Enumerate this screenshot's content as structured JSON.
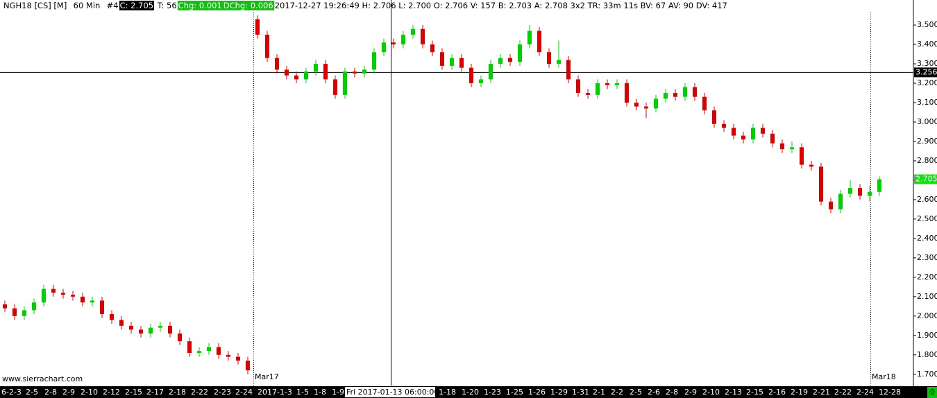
{
  "header": {
    "symbol": "NGH18 [CS] [M]",
    "interval": "60 Min",
    "index": "#4",
    "close": "C: 2.705",
    "trades": "T: 56",
    "chg": "Chg: 0.001",
    "dchg": "DChg: 0.006",
    "details": "2017-12-27 19:26:49 H: 2.706 L: 2.700 O: 2.706 V: 157 B: 2.703 A: 2.708 3x2 TR: 33m 11s BV: 67 AV: 90 DV: 417"
  },
  "chart_data": {
    "type": "candlestick",
    "watermark": "www.sierrachart.com",
    "contract_labels": [
      "Mar17",
      "Mar18"
    ],
    "up_color": "#00d000",
    "down_color": "#d80000",
    "open": [
      2.06,
      2.04,
      2.0,
      2.03,
      2.07,
      2.14,
      2.12,
      2.11,
      2.1,
      2.07,
      2.08,
      2.01,
      1.98,
      1.95,
      1.93,
      1.91,
      1.94,
      1.95,
      1.91,
      1.87,
      1.81,
      1.82,
      1.84,
      1.8,
      1.79,
      1.77,
      3.53,
      3.45,
      3.33,
      3.27,
      3.24,
      3.22,
      3.26,
      3.3,
      3.22,
      3.14,
      3.26,
      3.25,
      3.27,
      3.36,
      3.41,
      3.4,
      3.45,
      3.48,
      3.4,
      3.36,
      3.29,
      3.33,
      3.28,
      3.2,
      3.22,
      3.3,
      3.33,
      3.31,
      3.4,
      3.47,
      3.36,
      3.3,
      3.32,
      3.22,
      3.15,
      3.14,
      3.2,
      3.19,
      3.2,
      3.1,
      3.08,
      3.07,
      3.12,
      3.15,
      3.13,
      3.18,
      3.13,
      3.06,
      2.99,
      2.97,
      2.93,
      2.91,
      2.97,
      2.94,
      2.89,
      2.86,
      2.87,
      2.78,
      2.77,
      2.59,
      2.55,
      2.63,
      2.66,
      2.62,
      2.64
    ],
    "high": [
      2.08,
      2.06,
      2.05,
      2.09,
      2.16,
      2.16,
      2.14,
      2.13,
      2.12,
      2.1,
      2.1,
      2.03,
      2.0,
      1.97,
      1.95,
      1.96,
      1.97,
      1.97,
      1.93,
      1.89,
      1.84,
      1.86,
      1.86,
      1.82,
      1.81,
      1.79,
      3.55,
      3.47,
      3.35,
      3.29,
      3.26,
      3.28,
      3.32,
      3.32,
      3.24,
      3.28,
      3.28,
      3.29,
      3.38,
      3.43,
      3.43,
      3.47,
      3.5,
      3.5,
      3.42,
      3.38,
      3.35,
      3.35,
      3.3,
      3.24,
      3.32,
      3.35,
      3.35,
      3.42,
      3.5,
      3.49,
      3.38,
      3.42,
      3.34,
      3.24,
      3.17,
      3.22,
      3.22,
      3.22,
      3.22,
      3.12,
      3.1,
      3.14,
      3.17,
      3.17,
      3.2,
      3.2,
      3.15,
      3.08,
      3.01,
      2.99,
      2.95,
      2.99,
      2.99,
      2.96,
      2.91,
      2.9,
      2.89,
      2.8,
      2.79,
      2.61,
      2.65,
      2.7,
      2.68,
      2.67,
      2.72
    ],
    "low": [
      2.02,
      1.98,
      1.98,
      2.01,
      2.05,
      2.1,
      2.09,
      2.08,
      2.05,
      2.05,
      1.99,
      1.96,
      1.93,
      1.91,
      1.89,
      1.89,
      1.92,
      1.89,
      1.85,
      1.79,
      1.79,
      1.8,
      1.78,
      1.77,
      1.75,
      1.7,
      3.43,
      3.31,
      3.25,
      3.22,
      3.2,
      3.2,
      3.24,
      3.2,
      3.12,
      3.12,
      3.23,
      3.23,
      3.25,
      3.34,
      3.38,
      3.38,
      3.43,
      3.38,
      3.34,
      3.27,
      3.27,
      3.26,
      3.18,
      3.18,
      3.2,
      3.28,
      3.29,
      3.29,
      3.38,
      3.34,
      3.28,
      3.28,
      3.2,
      3.13,
      3.12,
      3.12,
      3.17,
      3.17,
      3.08,
      3.06,
      3.02,
      3.05,
      3.1,
      3.11,
      3.11,
      3.11,
      3.04,
      2.97,
      2.95,
      2.91,
      2.89,
      2.89,
      2.92,
      2.87,
      2.84,
      2.84,
      2.76,
      2.75,
      2.57,
      2.53,
      2.53,
      2.61,
      2.6,
      2.59,
      2.62
    ],
    "close": [
      2.04,
      2.0,
      2.03,
      2.07,
      2.14,
      2.12,
      2.11,
      2.1,
      2.07,
      2.08,
      2.01,
      1.98,
      1.95,
      1.93,
      1.91,
      1.94,
      1.95,
      1.91,
      1.87,
      1.81,
      1.82,
      1.84,
      1.8,
      1.79,
      1.77,
      1.72,
      3.45,
      3.33,
      3.27,
      3.24,
      3.22,
      3.26,
      3.3,
      3.22,
      3.14,
      3.26,
      3.25,
      3.27,
      3.36,
      3.41,
      3.4,
      3.45,
      3.48,
      3.4,
      3.36,
      3.29,
      3.33,
      3.28,
      3.2,
      3.22,
      3.3,
      3.33,
      3.31,
      3.4,
      3.47,
      3.36,
      3.3,
      3.32,
      3.22,
      3.15,
      3.14,
      3.2,
      3.19,
      3.2,
      3.1,
      3.08,
      3.07,
      3.12,
      3.15,
      3.13,
      3.18,
      3.13,
      3.06,
      2.99,
      2.97,
      2.93,
      2.91,
      2.97,
      2.94,
      2.89,
      2.86,
      2.87,
      2.78,
      2.77,
      2.59,
      2.55,
      2.63,
      2.66,
      2.62,
      2.64,
      2.705
    ],
    "x_labels": [
      "6-2-3",
      "2-5",
      "2-8",
      "2-9",
      "2-10",
      "2-12",
      "2-15",
      "2-17",
      "2-18",
      "2-22",
      "2-23",
      "2-24",
      "2017-1-3",
      "1-5",
      "1-8",
      "1-9",
      "Fri 2017-01-13  06:00:00",
      "1-18",
      "1-20",
      "1-23",
      "1-25",
      "1-26",
      "1-29",
      "1-31",
      "2-1",
      "2-2",
      "2-5",
      "2-6",
      "2-8",
      "2-9",
      "2-10",
      "2-13",
      "2-15",
      "2-16",
      "2-19",
      "2-21",
      "2-22",
      "2-24",
      "12-28"
    ],
    "corner_label": "0",
    "crosshair": {
      "value": 3.256,
      "label": "3.256"
    },
    "last_price": {
      "value": 2.705,
      "label": "2.705"
    },
    "ylim": [
      1.642,
      3.629
    ],
    "yticks": [
      {
        "value": 1.7,
        "label": "1.700"
      },
      {
        "value": 1.8,
        "label": "1.800"
      },
      {
        "value": 1.9,
        "label": "1.900"
      },
      {
        "value": 2.0,
        "label": "2.000"
      },
      {
        "value": 2.1,
        "label": "2.100"
      },
      {
        "value": 2.2,
        "label": "2.200"
      },
      {
        "value": 2.3,
        "label": "2.300"
      },
      {
        "value": 2.4,
        "label": "2.400"
      },
      {
        "value": 2.5,
        "label": "2.500"
      },
      {
        "value": 2.6,
        "label": "2.600"
      },
      {
        "value": 2.7,
        "label": "2.700"
      },
      {
        "value": 2.8,
        "label": "2.800"
      },
      {
        "value": 2.9,
        "label": "2.900"
      },
      {
        "value": 3.0,
        "label": "3.000"
      },
      {
        "value": 3.1,
        "label": "3.100"
      },
      {
        "value": 3.2,
        "label": "3.200"
      },
      {
        "value": 3.3,
        "label": "3.300"
      },
      {
        "value": 3.4,
        "label": "3.400"
      },
      {
        "value": 3.5,
        "label": "3.500"
      }
    ]
  }
}
